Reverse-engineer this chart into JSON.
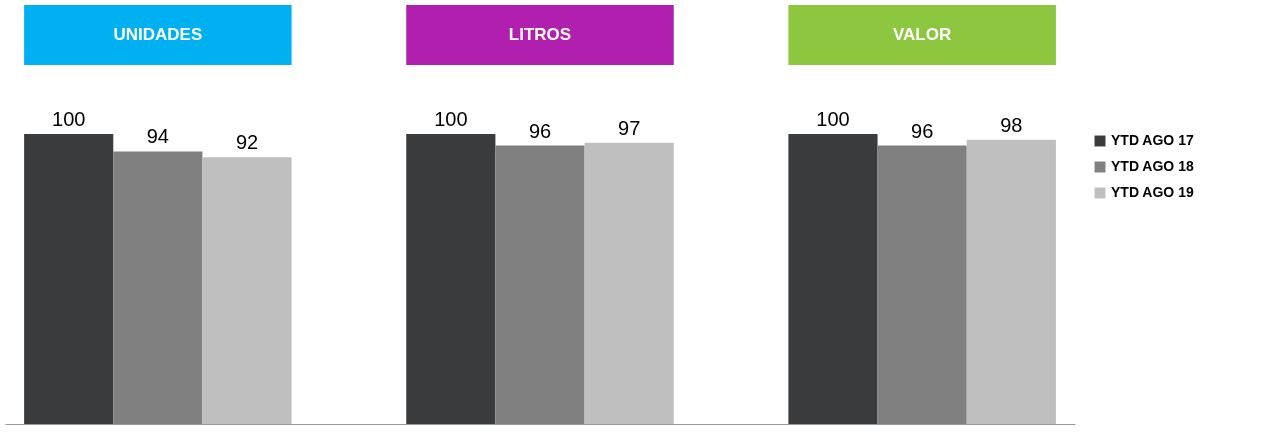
{
  "chart_data": {
    "type": "bar",
    "categories": [
      "UNIDADES",
      "LITROS",
      "VALOR"
    ],
    "data_labels": true,
    "legend": "right",
    "series": [
      {
        "name": "YTD AGO 17",
        "color": "#3a3b3d",
        "values": [
          100,
          100,
          100
        ]
      },
      {
        "name": "YTD AGO 18",
        "color": "#808080",
        "values": [
          94,
          96,
          96
        ]
      },
      {
        "name": "YTD AGO 19",
        "color": "#bfbfbf",
        "values": [
          92,
          97,
          98
        ]
      }
    ]
  }
}
